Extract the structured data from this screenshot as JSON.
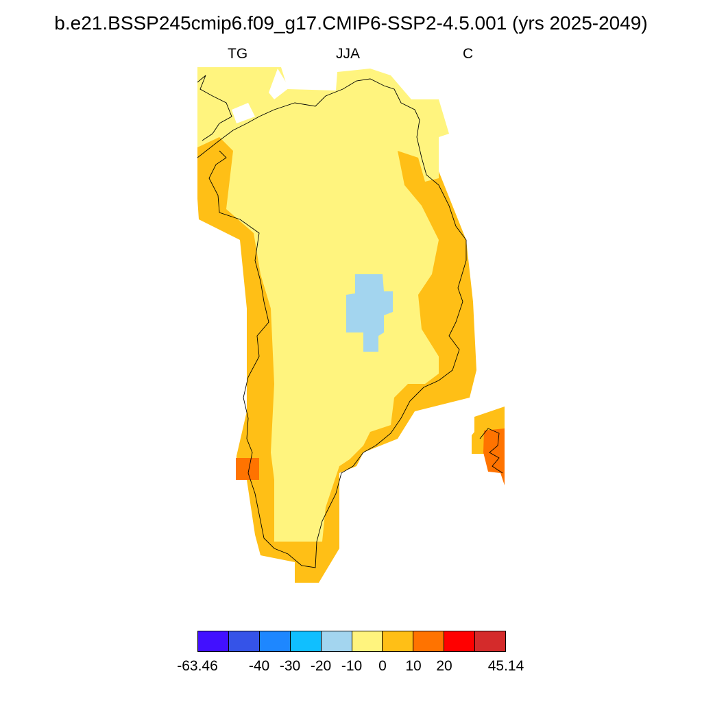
{
  "title": "b.e21.BSSP245cmip6.f09_g17.CMIP6-SSP2-4.5.001 (yrs 2025-2049)",
  "subtitles": {
    "left": "TG",
    "center": "JJA",
    "right": "C"
  },
  "colors": {
    "background": "#ffffff",
    "coast": "#000000",
    "cold_bin": "#a3d5ef",
    "mild_bin": "#fff47e",
    "warm_bin": "#ffbf16",
    "hot_bin": "#ff7300"
  },
  "colorbar": {
    "boxes": [
      "#4210ff",
      "#3553e8",
      "#1e87ff",
      "#10bfff",
      "#a3d5ef",
      "#fff47e",
      "#ffbf16",
      "#ff7300",
      "#ff0000",
      "#d42b2b"
    ],
    "labels": [
      "-63.46",
      "-40",
      "-30",
      "-20",
      "-10",
      "0",
      "10",
      "20",
      "45.14"
    ]
  }
}
